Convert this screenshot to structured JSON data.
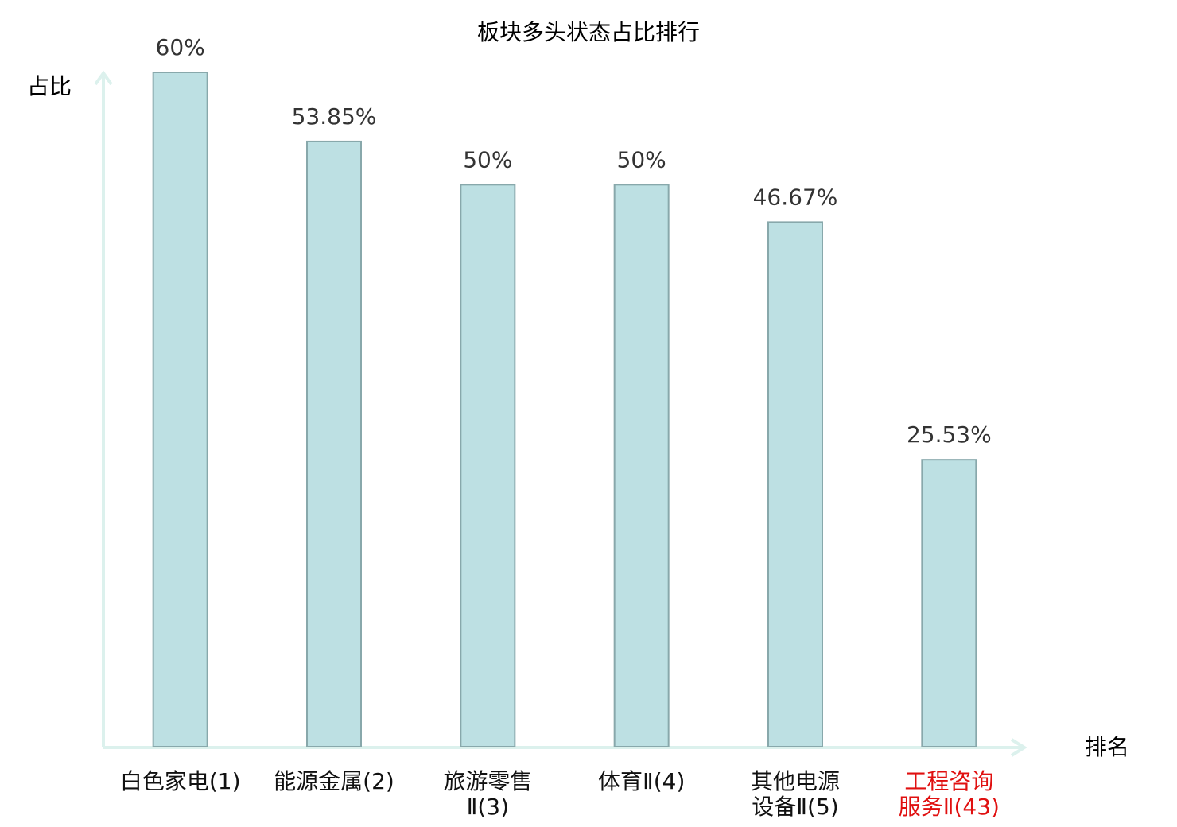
{
  "chart_data": {
    "type": "bar",
    "title": "板块多头状态占比排行",
    "y_label": "占比",
    "x_label": "排名",
    "categories": [
      "白色家电(1)",
      "能源金属(2)",
      "旅游零售Ⅱ(3)",
      "体育Ⅱ(4)",
      "其他电源设备Ⅱ(5)",
      "工程咨询服务Ⅱ(43)"
    ],
    "values": [
      60,
      53.85,
      50,
      50,
      46.67,
      25.53
    ],
    "value_labels": [
      "60%",
      "53.85%",
      "50%",
      "50%",
      "46.67%",
      "25.53%"
    ],
    "color": "#bde0e3",
    "label_colors": [
      "#111111",
      "#111111",
      "#111111",
      "#111111",
      "#111111",
      "#e01010"
    ],
    "ylim": [
      0,
      60
    ],
    "grid": false
  }
}
